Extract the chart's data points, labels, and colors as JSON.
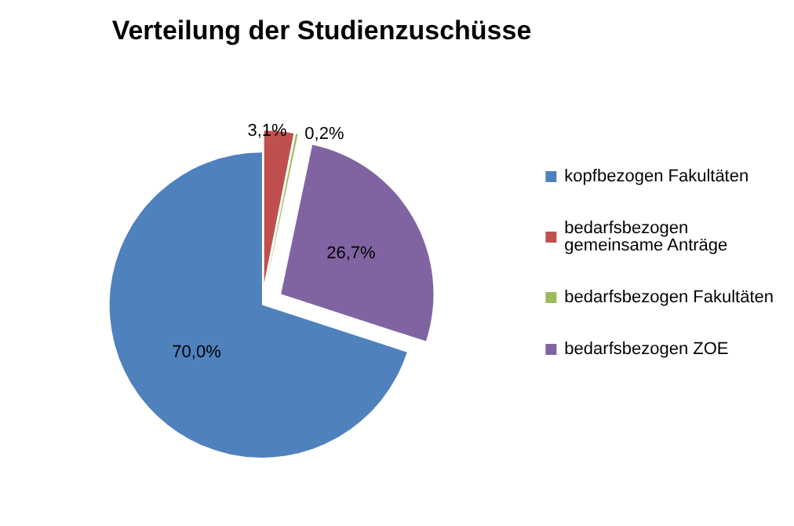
{
  "chart_data": {
    "type": "pie",
    "title": "Verteilung der Studienzuschüsse",
    "categories": [
      "kopfbezogen Fakultäten",
      "bedarfsbezogen gemeinsame Anträge",
      "bedarfsbezogen Fakultäten",
      "bedarfsbezogen ZOE"
    ],
    "values": [
      70.0,
      3.1,
      0.2,
      26.7
    ],
    "colors": [
      "#4f81bd",
      "#c0504d",
      "#9bbb59",
      "#8064a2"
    ],
    "value_labels": [
      "70,0%",
      "3,1%",
      "0,2%",
      "26,7%"
    ],
    "legend": "right"
  }
}
